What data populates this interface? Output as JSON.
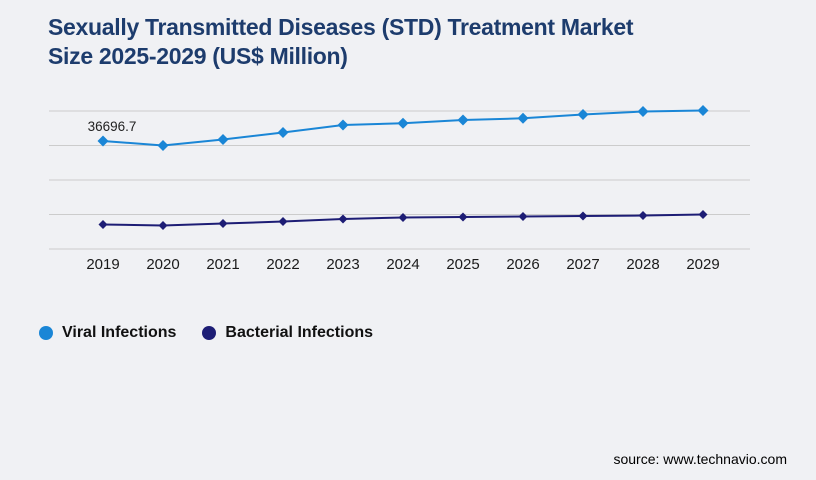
{
  "page": {
    "title_line1": "Sexually Transmitted Diseases (STD) Treatment Market",
    "title_line2": "Size 2025-2029 (US$ Million)",
    "source": "source: www.technavio.com",
    "background_color": "#f0f1f4",
    "title_color": "#1d3c6d"
  },
  "legend": {
    "items": [
      {
        "label": "Viral Infections",
        "color": "#1a86d6"
      },
      {
        "label": "Bacterial Infections",
        "color": "#1d1d75"
      }
    ]
  },
  "chart_data": {
    "type": "line",
    "title": "Sexually Transmitted Diseases (STD) Treatment Market Size 2025-2029 (US$ Million)",
    "xlabel": "",
    "ylabel": "",
    "categories": [
      "2019",
      "2020",
      "2021",
      "2022",
      "2023",
      "2024",
      "2025",
      "2026",
      "2027",
      "2028",
      "2029"
    ],
    "series": [
      {
        "name": "Viral Infections",
        "color": "#1a86d6",
        "marker": "diamond",
        "values": [
          36696.7,
          35170,
          37210,
          39580,
          42130,
          42710,
          43830,
          44410,
          45700,
          46720,
          47060
        ]
      },
      {
        "name": "Bacterial Infections",
        "color": "#1d1d75",
        "marker": "diamond",
        "values": [
          8320,
          7990,
          8660,
          9340,
          10190,
          10700,
          10870,
          11040,
          11210,
          11380,
          11720
        ]
      }
    ],
    "data_labels": [
      {
        "series": "Viral Infections",
        "category": "2019",
        "text": "36696.7"
      }
    ],
    "y_axis_tick_labels_visible": false,
    "ylim": [
      0,
      48000
    ],
    "grid": {
      "horizontal_lines": 5,
      "color": "#cccccc"
    },
    "x_tick_color": "#1a1a1a",
    "legend_position": "bottom-left"
  }
}
